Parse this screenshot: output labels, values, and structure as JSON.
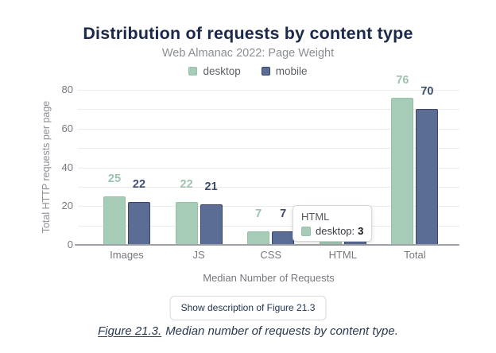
{
  "header": {
    "title": "Distribution of requests by content type",
    "subtitle": "Web Almanac 2022: Page Weight"
  },
  "chart_data": {
    "type": "bar",
    "title": "Distribution of requests by content type",
    "subtitle": "Web Almanac 2022: Page Weight",
    "categories": [
      "Images",
      "JS",
      "CSS",
      "HTML",
      "Total"
    ],
    "series": [
      {
        "name": "desktop",
        "values": [
          25,
          22,
          7,
          3,
          76
        ],
        "color": "#a6cbb7",
        "border_color": "#96c1a8",
        "label_color": "#9cc3ae"
      },
      {
        "name": "mobile",
        "values": [
          22,
          21,
          7,
          2,
          70
        ],
        "color": "#5b6d95",
        "border_color": "#36466c",
        "label_color": "#3c4d70"
      }
    ],
    "xlabel": "Median Number of Requests",
    "ylabel": "Total HTTP requests per page",
    "ylim": [
      0,
      80
    ],
    "yticks": [
      0,
      20,
      40,
      60,
      80
    ],
    "grid_step": 10,
    "grid": true,
    "legend_position": "top",
    "bar_value_labels": true
  },
  "tooltip": {
    "category": "HTML",
    "series": "desktop:",
    "value": "3"
  },
  "footer": {
    "button_label": "Show description of Figure 21.3",
    "caption_link": "Figure 21.3.",
    "caption_text": "Median number of requests by content type."
  },
  "colors": {
    "title_text": "#1b294a",
    "subtitle_text": "#8a8e95",
    "desktop": "#a6cbb7",
    "mobile": "#5b6d95",
    "grid_line": "#ebebef",
    "axis_line": "#9ea0a5",
    "tick_text": "#75787e"
  }
}
